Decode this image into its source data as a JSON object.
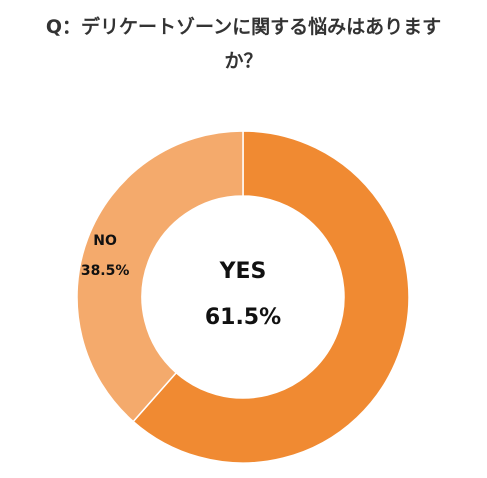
{
  "chart_data": {
    "type": "pie",
    "title": "Q：デリケートゾーンに関する悩みはありますか？",
    "title_lines": [
      "Q：デリケートゾーンに関する悩みはあります",
      "か？"
    ],
    "categories": [
      "YES",
      "NO"
    ],
    "values": [
      61.5,
      38.5
    ],
    "value_labels": [
      "61.5%",
      "38.5%"
    ],
    "colors": [
      "#F08A32",
      "#F4AA6C"
    ],
    "style": "donut",
    "legend": "none"
  }
}
